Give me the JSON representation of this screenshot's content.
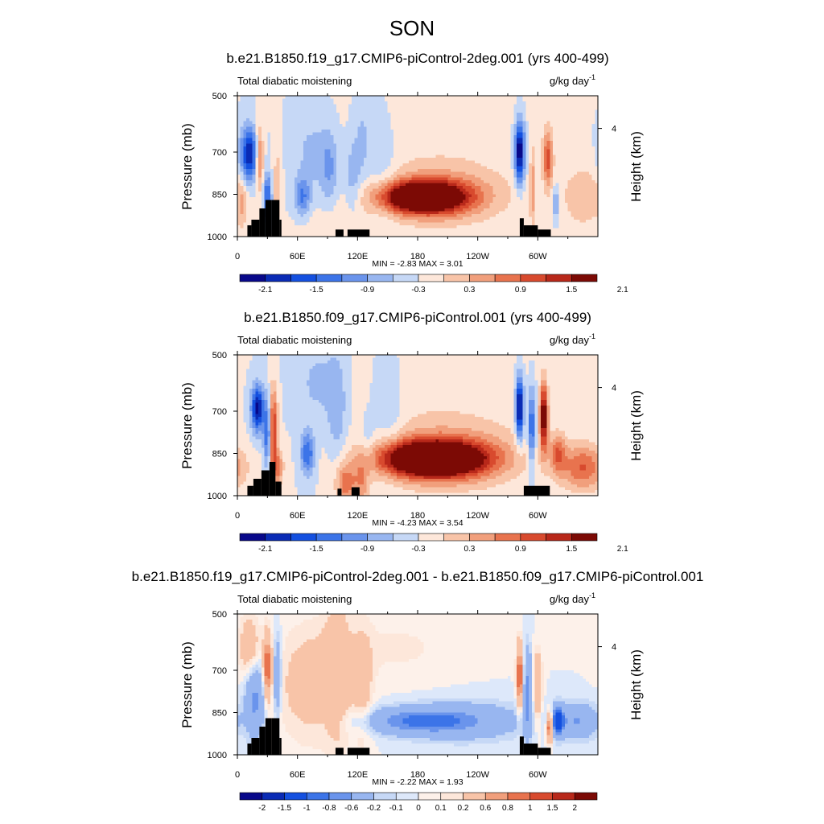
{
  "figure": {
    "season": "SON",
    "colors": {
      "levels12": [
        "#08088a",
        "#0a2bb5",
        "#1450e0",
        "#3c74e8",
        "#6a94ec",
        "#98b6f0",
        "#c6d8f6",
        "#fde7da",
        "#f8c4a8",
        "#f19f7c",
        "#e8734e",
        "#d84a2e",
        "#b8281a",
        "#7c0a05"
      ],
      "diff": [
        "#08088a",
        "#0a2bb5",
        "#1450e0",
        "#3c74e8",
        "#6a94ec",
        "#98b6f0",
        "#c6d8f6",
        "#dde8fa",
        "#fdf1ea",
        "#fde7da",
        "#f8c4a8",
        "#f19f7c",
        "#e8734e",
        "#d84a2e",
        "#b8281a",
        "#7c0a05"
      ]
    }
  },
  "panels": [
    {
      "title": "b.e21.B1850.f19_g17.CMIP6-piControl-2deg.001 (yrs 400-499)",
      "left_label": "Total diabatic moistening",
      "units": "g/kg day",
      "units_exp": "-1",
      "ylabel": "Pressure (mb)",
      "ylabel_right": "Height (km)",
      "stats": "MIN =  -2.83  MAX =   3.01",
      "colorbar_labels": [
        "-2.1",
        "-1.5",
        "-0.9",
        "-0.3",
        "0.3",
        "0.9",
        "1.5",
        "2.1"
      ]
    },
    {
      "title": "b.e21.B1850.f09_g17.CMIP6-piControl.001 (yrs 400-499)",
      "left_label": "Total diabatic moistening",
      "units": "g/kg day",
      "units_exp": "-1",
      "ylabel": "Pressure (mb)",
      "ylabel_right": "Height (km)",
      "stats": "MIN =  -4.23  MAX =   3.54",
      "colorbar_labels": [
        "-2.1",
        "-1.5",
        "-0.9",
        "-0.3",
        "0.3",
        "0.9",
        "1.5",
        "2.1"
      ]
    },
    {
      "title": "b.e21.B1850.f19_g17.CMIP6-piControl-2deg.001 - b.e21.B1850.f09_g17.CMIP6-piControl.001",
      "left_label": "Total diabatic moistening",
      "units": "g/kg day",
      "units_exp": "-1",
      "ylabel": "Pressure (mb)",
      "ylabel_right": "Height (km)",
      "stats": "MIN =  -2.22  MAX =   1.93",
      "colorbar_labels": [
        "-2",
        "-1.5",
        "-1",
        "-0.8",
        "-0.6",
        "-0.2",
        "-0.1",
        "0",
        "0.1",
        "0.2",
        "0.6",
        "0.8",
        "1",
        "1.5",
        "2"
      ]
    }
  ],
  "chart_data": [
    {
      "type": "heatmap",
      "title": "b.e21.B1850.f19_g17.CMIP6-piControl-2deg.001 (yrs 400-499)",
      "variable": "Total diabatic moistening",
      "units": "g/kg day-1",
      "x_ticks": [
        "0",
        "60E",
        "120E",
        "180",
        "120W",
        "60W"
      ],
      "x_tick_lon": [
        0,
        60,
        120,
        180,
        240,
        300
      ],
      "xlim": [
        0,
        360
      ],
      "y_ticks": [
        "500",
        "700",
        "850",
        "1000"
      ],
      "y_tick_values": [
        500,
        700,
        850,
        1000
      ],
      "ylim": [
        1000,
        500
      ],
      "y_right_ticks": [
        "4"
      ],
      "y_right_tick_pressure": [
        616
      ],
      "stats": {
        "min": -2.83,
        "max": 3.01
      },
      "contour_levels": [
        -2.4,
        -2.1,
        -1.8,
        -1.5,
        -1.2,
        -0.9,
        -0.6,
        -0.3,
        0,
        0.3,
        0.6,
        0.9,
        1.2,
        1.5,
        1.8,
        2.1,
        2.4
      ],
      "features": [
        {
          "lon": 185,
          "p": 860,
          "amp": 2.8,
          "w": 42,
          "h": 55
        },
        {
          "lon": 205,
          "p": 855,
          "amp": 0.8,
          "w": 60,
          "h": 100
        },
        {
          "lon": 200,
          "p": 650,
          "amp": 0.2,
          "w": 95,
          "h": 250
        },
        {
          "lon": 12,
          "p": 710,
          "amp": -1.8,
          "w": 9,
          "h": 95
        },
        {
          "lon": 22,
          "p": 720,
          "amp": 1.3,
          "w": 4,
          "h": 110
        },
        {
          "lon": 30,
          "p": 860,
          "amp": -1.4,
          "w": 4,
          "h": 80
        },
        {
          "lon": 40,
          "p": 820,
          "amp": 0.6,
          "w": 4,
          "h": 130
        },
        {
          "lon": 65,
          "p": 860,
          "amp": -0.9,
          "w": 8,
          "h": 70
        },
        {
          "lon": 75,
          "p": 700,
          "amp": -0.4,
          "w": 20,
          "h": 150
        },
        {
          "lon": 92,
          "p": 760,
          "amp": -0.6,
          "w": 9,
          "h": 130
        },
        {
          "lon": 115,
          "p": 800,
          "amp": -0.5,
          "w": 8,
          "h": 140
        },
        {
          "lon": 125,
          "p": 650,
          "amp": -0.4,
          "w": 10,
          "h": 180
        },
        {
          "lon": 145,
          "p": 750,
          "amp": -0.35,
          "w": 14,
          "h": 220
        },
        {
          "lon": 282,
          "p": 700,
          "amp": -2.2,
          "w": 5,
          "h": 110
        },
        {
          "lon": 295,
          "p": 830,
          "amp": 0.7,
          "w": 3,
          "h": 140
        },
        {
          "lon": 310,
          "p": 720,
          "amp": 1.3,
          "w": 5,
          "h": 100
        },
        {
          "lon": 318,
          "p": 880,
          "amp": -0.8,
          "w": 3,
          "h": 60
        },
        {
          "lon": 345,
          "p": 860,
          "amp": 0.5,
          "w": 22,
          "h": 120
        },
        {
          "lon": 5,
          "p": 880,
          "amp": 0.5,
          "w": 5,
          "h": 90
        },
        {
          "lon": 100,
          "p": 960,
          "amp": 0.3,
          "w": 35,
          "h": 60
        }
      ],
      "topography": [
        {
          "lon0": 10,
          "lon1": 14,
          "p_top": 960
        },
        {
          "lon0": 14,
          "lon1": 22,
          "p_top": 940
        },
        {
          "lon0": 22,
          "lon1": 28,
          "p_top": 900
        },
        {
          "lon0": 28,
          "lon1": 34,
          "p_top": 870
        },
        {
          "lon0": 34,
          "lon1": 42,
          "p_top": 870
        },
        {
          "lon0": 42,
          "lon1": 44,
          "p_top": 940
        },
        {
          "lon0": 98,
          "lon1": 106,
          "p_top": 975
        },
        {
          "lon0": 110,
          "lon1": 132,
          "p_top": 975
        },
        {
          "lon0": 282,
          "lon1": 286,
          "p_top": 935
        },
        {
          "lon0": 286,
          "lon1": 300,
          "p_top": 960
        },
        {
          "lon0": 300,
          "lon1": 313,
          "p_top": 975
        }
      ]
    },
    {
      "type": "heatmap",
      "title": "b.e21.B1850.f09_g17.CMIP6-piControl.001 (yrs 400-499)",
      "variable": "Total diabatic moistening",
      "units": "g/kg day-1",
      "x_ticks": [
        "0",
        "60E",
        "120E",
        "180",
        "120W",
        "60W"
      ],
      "x_tick_lon": [
        0,
        60,
        120,
        180,
        240,
        300
      ],
      "xlim": [
        0,
        360
      ],
      "y_ticks": [
        "500",
        "700",
        "850",
        "1000"
      ],
      "y_tick_values": [
        500,
        700,
        850,
        1000
      ],
      "ylim": [
        1000,
        500
      ],
      "y_right_ticks": [
        "4"
      ],
      "y_right_tick_pressure": [
        616
      ],
      "stats": {
        "min": -4.23,
        "max": 3.54
      },
      "contour_levels": [
        -2.4,
        -2.1,
        -1.8,
        -1.5,
        -1.2,
        -0.9,
        -0.6,
        -0.3,
        0,
        0.3,
        0.6,
        0.9,
        1.2,
        1.5,
        1.8,
        2.1,
        2.4
      ],
      "features": [
        {
          "lon": 195,
          "p": 870,
          "amp": 3.2,
          "w": 50,
          "h": 60
        },
        {
          "lon": 210,
          "p": 860,
          "amp": 0.9,
          "w": 70,
          "h": 110
        },
        {
          "lon": 200,
          "p": 650,
          "amp": 0.2,
          "w": 95,
          "h": 250
        },
        {
          "lon": 20,
          "p": 690,
          "amp": -2.0,
          "w": 6,
          "h": 80
        },
        {
          "lon": 30,
          "p": 780,
          "amp": -1.2,
          "w": 4,
          "h": 120
        },
        {
          "lon": 36,
          "p": 760,
          "amp": 1.6,
          "w": 4,
          "h": 140
        },
        {
          "lon": 40,
          "p": 900,
          "amp": 1.0,
          "w": 6,
          "h": 60
        },
        {
          "lon": 70,
          "p": 850,
          "amp": -1.2,
          "w": 7,
          "h": 75
        },
        {
          "lon": 80,
          "p": 600,
          "amp": -0.4,
          "w": 22,
          "h": 150
        },
        {
          "lon": 100,
          "p": 700,
          "amp": -0.5,
          "w": 10,
          "h": 200
        },
        {
          "lon": 130,
          "p": 850,
          "amp": -0.4,
          "w": 8,
          "h": 120
        },
        {
          "lon": 150,
          "p": 700,
          "amp": -0.4,
          "w": 16,
          "h": 220
        },
        {
          "lon": 108,
          "p": 960,
          "amp": 1.1,
          "w": 10,
          "h": 70
        },
        {
          "lon": 125,
          "p": 950,
          "amp": 0.8,
          "w": 8,
          "h": 80
        },
        {
          "lon": 282,
          "p": 690,
          "amp": -2.2,
          "w": 4,
          "h": 110
        },
        {
          "lon": 294,
          "p": 760,
          "amp": -1.3,
          "w": 4,
          "h": 140
        },
        {
          "lon": 306,
          "p": 720,
          "amp": 2.2,
          "w": 4,
          "h": 120
        },
        {
          "lon": 320,
          "p": 850,
          "amp": 1.0,
          "w": 8,
          "h": 70
        },
        {
          "lon": 345,
          "p": 900,
          "amp": 1.2,
          "w": 22,
          "h": 80
        }
      ],
      "topography": [
        {
          "lon0": 10,
          "lon1": 16,
          "p_top": 965
        },
        {
          "lon0": 16,
          "lon1": 24,
          "p_top": 940
        },
        {
          "lon0": 24,
          "lon1": 32,
          "p_top": 910
        },
        {
          "lon0": 32,
          "lon1": 38,
          "p_top": 880
        },
        {
          "lon0": 38,
          "lon1": 44,
          "p_top": 950
        },
        {
          "lon0": 100,
          "lon1": 104,
          "p_top": 975
        },
        {
          "lon0": 114,
          "lon1": 122,
          "p_top": 970
        },
        {
          "lon0": 286,
          "lon1": 312,
          "p_top": 965
        }
      ]
    },
    {
      "type": "heatmap",
      "title": "b.e21.B1850.f19_g17.CMIP6-piControl-2deg.001 - b.e21.B1850.f09_g17.CMIP6-piControl.001",
      "variable": "Total diabatic moistening",
      "units": "g/kg day-1",
      "x_ticks": [
        "0",
        "60E",
        "120E",
        "180",
        "120W",
        "60W"
      ],
      "x_tick_lon": [
        0,
        60,
        120,
        180,
        240,
        300
      ],
      "xlim": [
        0,
        360
      ],
      "y_ticks": [
        "500",
        "700",
        "850",
        "1000"
      ],
      "y_tick_values": [
        500,
        700,
        850,
        1000
      ],
      "ylim": [
        1000,
        500
      ],
      "y_right_ticks": [
        "4"
      ],
      "y_right_tick_pressure": [
        616
      ],
      "stats": {
        "min": -2.22,
        "max": 1.93
      },
      "contour_levels": [
        -2.5,
        -2,
        -1.5,
        -1,
        -0.8,
        -0.6,
        -0.2,
        -0.1,
        0,
        0.1,
        0.2,
        0.6,
        0.8,
        1,
        1.5,
        2,
        2.5
      ],
      "features": [
        {
          "lon": 12,
          "p": 620,
          "amp": 0.45,
          "w": 10,
          "h": 110
        },
        {
          "lon": 30,
          "p": 690,
          "amp": 1.1,
          "w": 4,
          "h": 110
        },
        {
          "lon": 18,
          "p": 800,
          "amp": -0.7,
          "w": 10,
          "h": 130
        },
        {
          "lon": 40,
          "p": 720,
          "amp": -0.6,
          "w": 4,
          "h": 140
        },
        {
          "lon": 75,
          "p": 750,
          "amp": 0.35,
          "w": 35,
          "h": 200
        },
        {
          "lon": 100,
          "p": 700,
          "amp": 0.35,
          "w": 12,
          "h": 250
        },
        {
          "lon": 125,
          "p": 760,
          "amp": 0.3,
          "w": 10,
          "h": 200
        },
        {
          "lon": 180,
          "p": 880,
          "amp": -0.75,
          "w": 55,
          "h": 45
        },
        {
          "lon": 230,
          "p": 880,
          "amp": -0.4,
          "w": 60,
          "h": 70
        },
        {
          "lon": 160,
          "p": 620,
          "amp": 0.12,
          "w": 60,
          "h": 120
        },
        {
          "lon": 282,
          "p": 720,
          "amp": 1.2,
          "w": 3,
          "h": 110
        },
        {
          "lon": 290,
          "p": 780,
          "amp": -0.7,
          "w": 4,
          "h": 150
        },
        {
          "lon": 300,
          "p": 760,
          "amp": 0.6,
          "w": 4,
          "h": 120
        },
        {
          "lon": 312,
          "p": 900,
          "amp": 1.3,
          "w": 3,
          "h": 50
        },
        {
          "lon": 320,
          "p": 880,
          "amp": -1.2,
          "w": 6,
          "h": 50
        },
        {
          "lon": 340,
          "p": 880,
          "amp": -0.6,
          "w": 20,
          "h": 60
        }
      ],
      "topography": [
        {
          "lon0": 10,
          "lon1": 14,
          "p_top": 960
        },
        {
          "lon0": 14,
          "lon1": 22,
          "p_top": 940
        },
        {
          "lon0": 22,
          "lon1": 28,
          "p_top": 900
        },
        {
          "lon0": 28,
          "lon1": 34,
          "p_top": 870
        },
        {
          "lon0": 34,
          "lon1": 42,
          "p_top": 870
        },
        {
          "lon0": 42,
          "lon1": 44,
          "p_top": 940
        },
        {
          "lon0": 98,
          "lon1": 106,
          "p_top": 975
        },
        {
          "lon0": 110,
          "lon1": 132,
          "p_top": 975
        },
        {
          "lon0": 282,
          "lon1": 286,
          "p_top": 935
        },
        {
          "lon0": 286,
          "lon1": 300,
          "p_top": 960
        },
        {
          "lon0": 300,
          "lon1": 313,
          "p_top": 975
        }
      ]
    }
  ]
}
